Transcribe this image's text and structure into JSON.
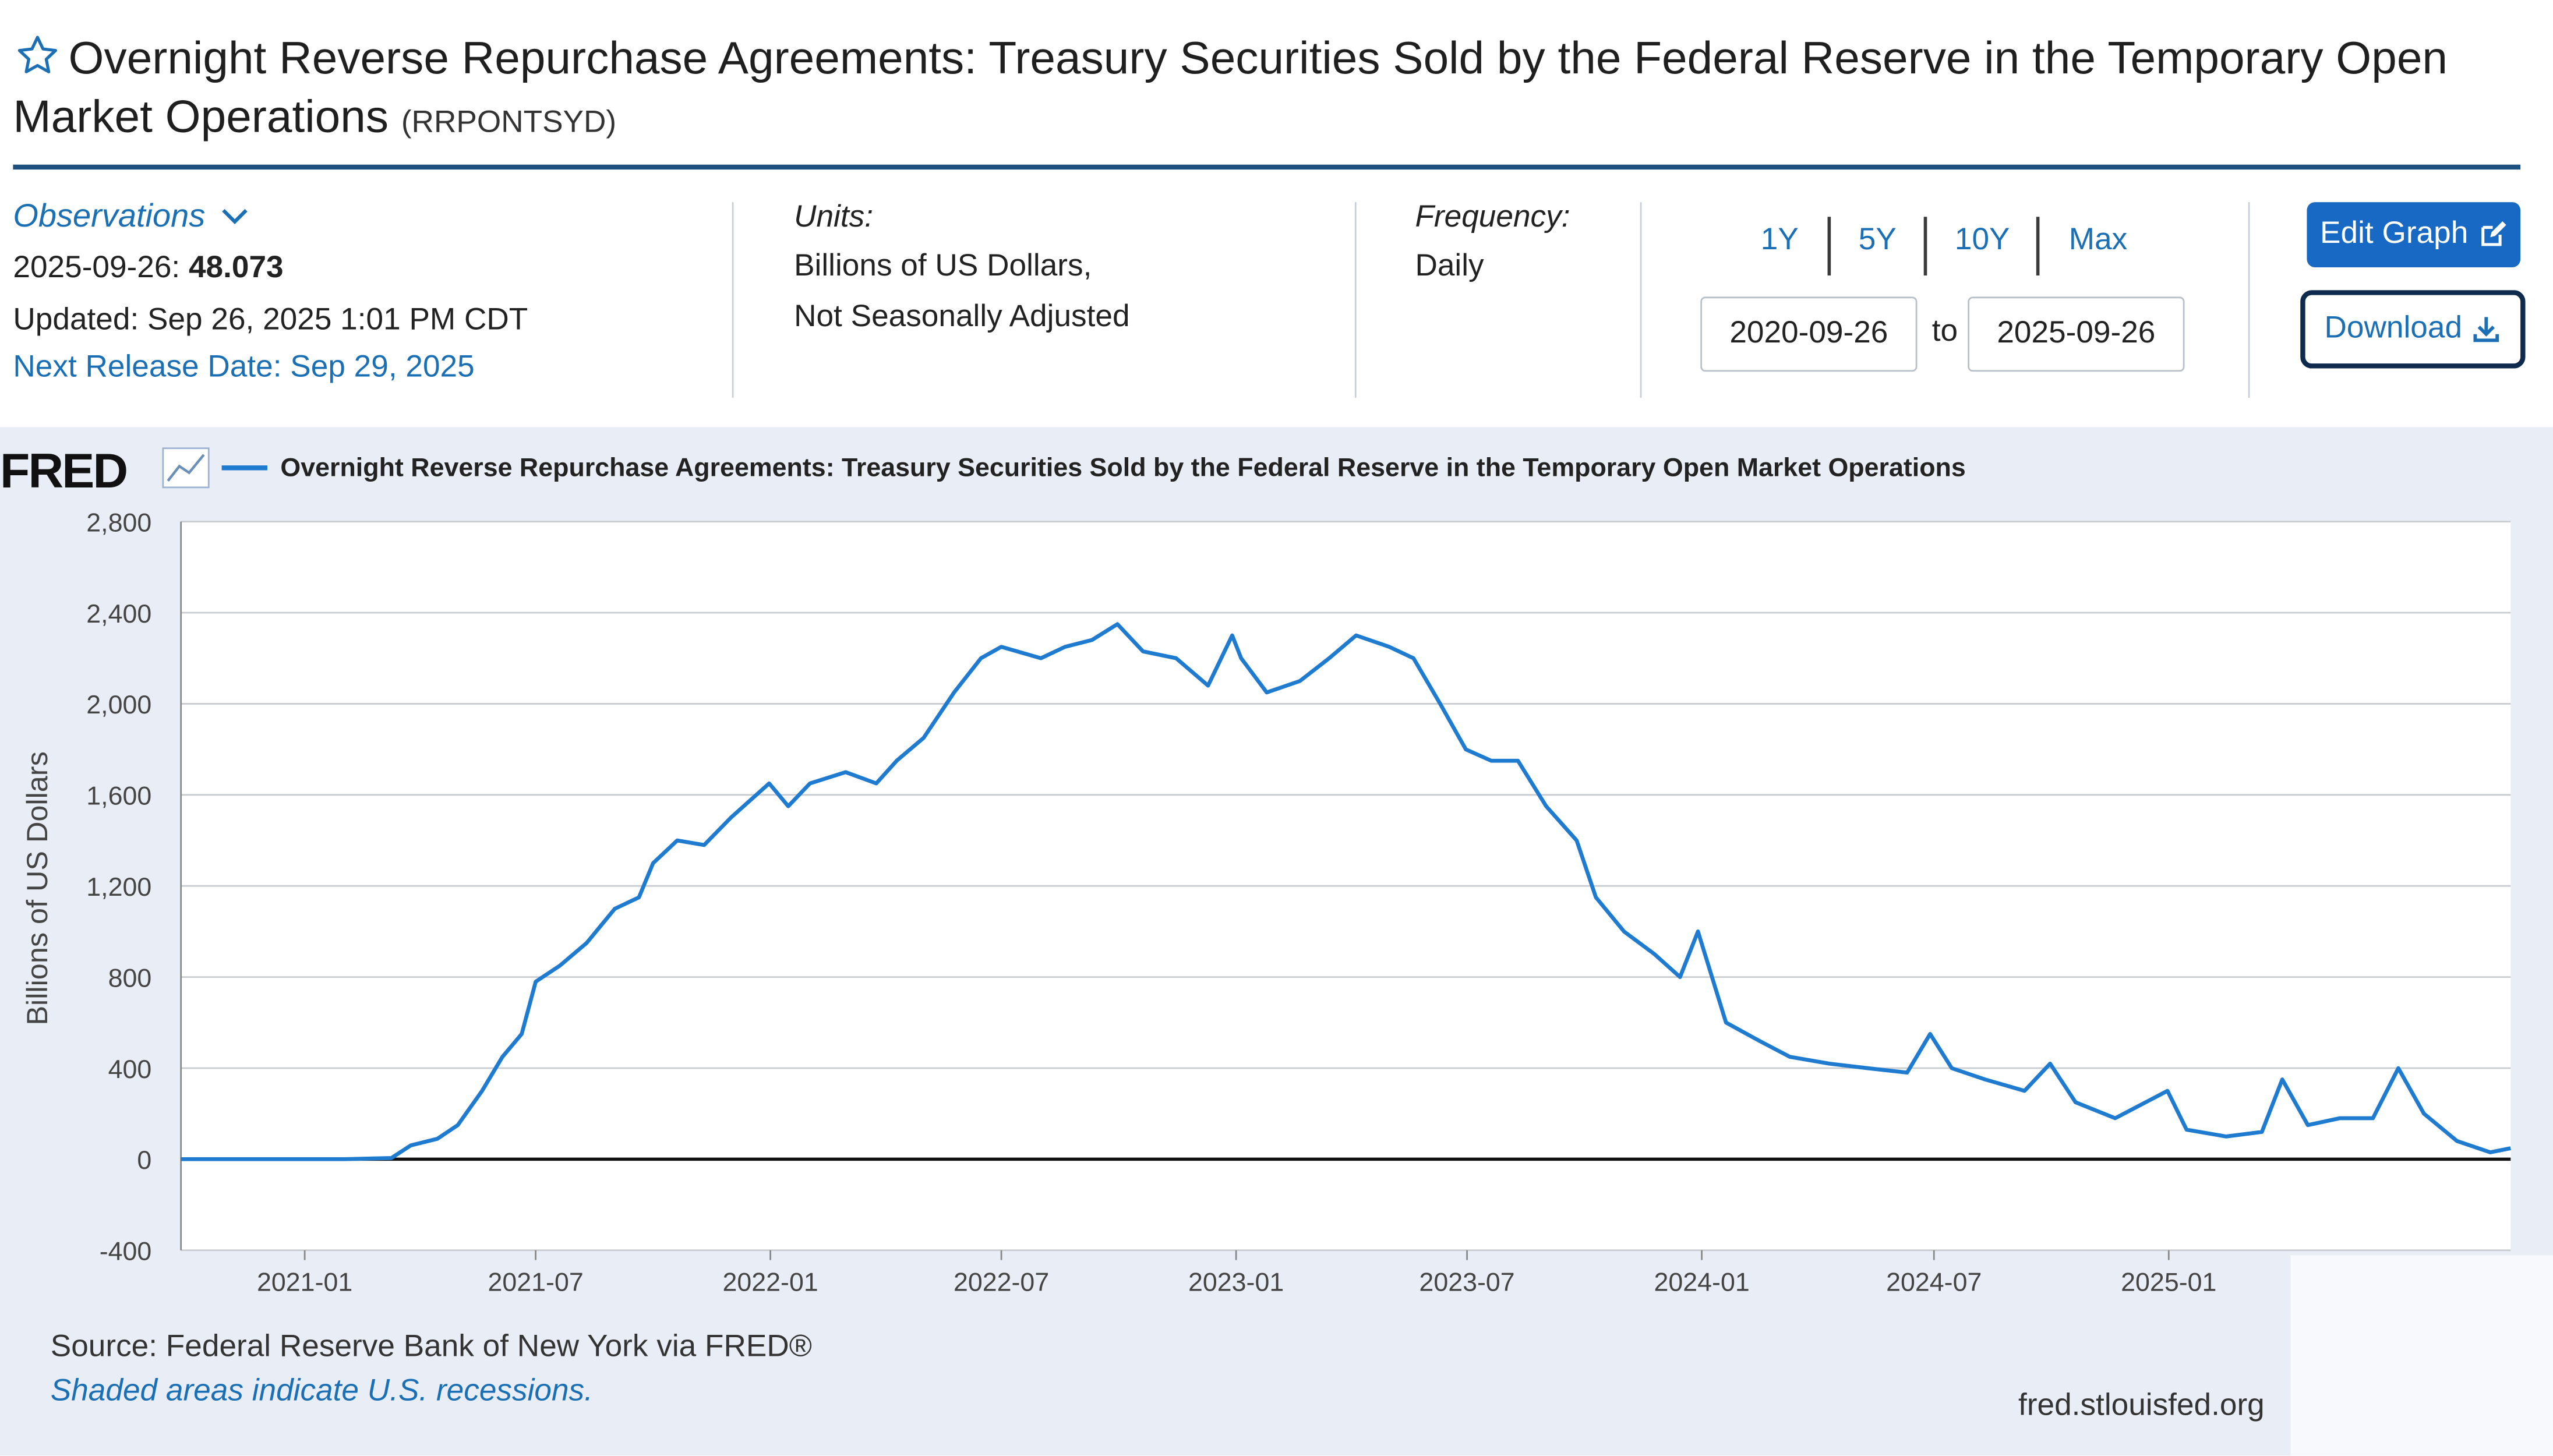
{
  "header": {
    "title": "Overnight Reverse Repurchase Agreements: Treasury Securities Sold by the Federal Reserve in the Temporary Open Market Operations",
    "series_id": "(RRPONTSYD)"
  },
  "observations": {
    "label": "Observations",
    "date": "2025-09-26:",
    "value": "48.073",
    "updated": "Updated: Sep 26, 2025 1:01 PM CDT",
    "next_release": "Next Release Date: Sep 29, 2025"
  },
  "units": {
    "label": "Units:",
    "line1": "Billions of US Dollars,",
    "line2": "Not Seasonally Adjusted"
  },
  "frequency": {
    "label": "Frequency:",
    "value": "Daily"
  },
  "range": {
    "buttons": [
      "1Y",
      "5Y",
      "10Y",
      "Max"
    ],
    "start": "2020-09-26",
    "to": "to",
    "end": "2025-09-26"
  },
  "actions": {
    "edit": "Edit Graph",
    "download": "Download"
  },
  "chart_logo": "FRED",
  "footer": {
    "source": "Source: Federal Reserve Bank of New York via FRED®",
    "shaded": "Shaded areas indicate U.S. recessions.",
    "site": "fred.stlouisfed.org"
  },
  "colors": {
    "series": "#1f7bd0",
    "accent": "#1769c3",
    "panel": "#e9eef6"
  },
  "chart_data": {
    "type": "line",
    "title": "Overnight Reverse Repurchase Agreements: Treasury Securities Sold by the Federal Reserve in the Temporary Open Market Operations",
    "xlabel": "",
    "ylabel": "Billions of US Dollars",
    "ylim": [
      -400,
      2800
    ],
    "yticks": [
      2800,
      2400,
      2000,
      1600,
      1200,
      800,
      400,
      0,
      -400
    ],
    "ytick_labels": [
      "2,800",
      "2,400",
      "2,000",
      "1,600",
      "1,200",
      "800",
      "400",
      "0",
      "-400"
    ],
    "xlim": [
      "2020-09-26",
      "2025-09-26"
    ],
    "xticks": [
      "2021-01",
      "2021-07",
      "2022-01",
      "2022-07",
      "2023-01",
      "2023-07",
      "2024-01",
      "2024-07",
      "2025-01"
    ],
    "legend": "top-left",
    "grid": true,
    "series": [
      {
        "name": "Overnight Reverse Repurchase Agreements: Treasury Securities Sold by the Federal Reserve in the Temporary Open Market Operations",
        "points": [
          [
            "2020-09-26",
            0
          ],
          [
            "2020-12-01",
            0
          ],
          [
            "2021-02-01",
            0
          ],
          [
            "2021-03-10",
            5
          ],
          [
            "2021-03-25",
            60
          ],
          [
            "2021-04-15",
            90
          ],
          [
            "2021-05-01",
            150
          ],
          [
            "2021-05-20",
            300
          ],
          [
            "2021-06-05",
            450
          ],
          [
            "2021-06-20",
            550
          ],
          [
            "2021-07-01",
            780
          ],
          [
            "2021-07-20",
            850
          ],
          [
            "2021-08-10",
            950
          ],
          [
            "2021-09-01",
            1100
          ],
          [
            "2021-09-20",
            1150
          ],
          [
            "2021-10-01",
            1300
          ],
          [
            "2021-10-20",
            1400
          ],
          [
            "2021-11-10",
            1380
          ],
          [
            "2021-12-01",
            1500
          ],
          [
            "2021-12-31",
            1650
          ],
          [
            "2022-01-15",
            1550
          ],
          [
            "2022-02-01",
            1650
          ],
          [
            "2022-03-01",
            1700
          ],
          [
            "2022-03-25",
            1650
          ],
          [
            "2022-04-10",
            1750
          ],
          [
            "2022-05-01",
            1850
          ],
          [
            "2022-05-25",
            2050
          ],
          [
            "2022-06-15",
            2200
          ],
          [
            "2022-07-01",
            2250
          ],
          [
            "2022-08-01",
            2200
          ],
          [
            "2022-08-20",
            2250
          ],
          [
            "2022-09-10",
            2280
          ],
          [
            "2022-09-30",
            2350
          ],
          [
            "2022-10-20",
            2230
          ],
          [
            "2022-11-15",
            2200
          ],
          [
            "2022-12-10",
            2080
          ],
          [
            "2022-12-29",
            2300
          ],
          [
            "2023-01-05",
            2200
          ],
          [
            "2023-01-25",
            2050
          ],
          [
            "2023-02-20",
            2100
          ],
          [
            "2023-03-15",
            2200
          ],
          [
            "2023-04-05",
            2300
          ],
          [
            "2023-05-01",
            2250
          ],
          [
            "2023-05-20",
            2200
          ],
          [
            "2023-06-10",
            2000
          ],
          [
            "2023-06-30",
            1800
          ],
          [
            "2023-07-20",
            1750
          ],
          [
            "2023-08-10",
            1750
          ],
          [
            "2023-09-01",
            1550
          ],
          [
            "2023-09-25",
            1400
          ],
          [
            "2023-10-10",
            1150
          ],
          [
            "2023-11-01",
            1000
          ],
          [
            "2023-11-25",
            900
          ],
          [
            "2023-12-15",
            800
          ],
          [
            "2023-12-29",
            1000
          ],
          [
            "2024-01-20",
            600
          ],
          [
            "2024-02-15",
            520
          ],
          [
            "2024-03-10",
            450
          ],
          [
            "2024-04-10",
            420
          ],
          [
            "2024-05-10",
            400
          ],
          [
            "2024-06-10",
            380
          ],
          [
            "2024-06-28",
            550
          ],
          [
            "2024-07-15",
            400
          ],
          [
            "2024-08-10",
            350
          ],
          [
            "2024-09-10",
            300
          ],
          [
            "2024-09-30",
            420
          ],
          [
            "2024-10-20",
            250
          ],
          [
            "2024-11-20",
            180
          ],
          [
            "2024-12-31",
            300
          ],
          [
            "2025-01-15",
            130
          ],
          [
            "2025-02-15",
            100
          ],
          [
            "2025-03-15",
            120
          ],
          [
            "2025-03-31",
            350
          ],
          [
            "2025-04-20",
            150
          ],
          [
            "2025-05-15",
            180
          ],
          [
            "2025-06-10",
            180
          ],
          [
            "2025-06-30",
            400
          ],
          [
            "2025-07-20",
            200
          ],
          [
            "2025-08-15",
            80
          ],
          [
            "2025-09-10",
            30
          ],
          [
            "2025-09-26",
            48
          ]
        ]
      }
    ]
  }
}
